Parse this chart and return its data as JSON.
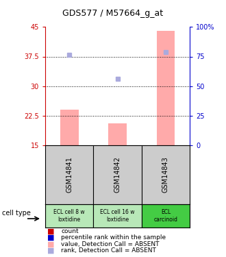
{
  "title": "GDS577 / M57664_g_at",
  "samples": [
    "GSM14841",
    "GSM14842",
    "GSM14843"
  ],
  "cell_types": [
    "ECL cell 8 w\nloxtidine",
    "ECL cell 16 w\nloxtidine",
    "ECL\ncarcinoid"
  ],
  "cell_type_colors": [
    "#b8e8b8",
    "#b8e8b8",
    "#44cc44"
  ],
  "bar_values": [
    24.0,
    20.5,
    44.0
  ],
  "bar_bottom": 15.0,
  "bar_color": "#ffaaaa",
  "rank_values": [
    76.5,
    56.0,
    79.0
  ],
  "rank_color": "#aaaadd",
  "ylim_left": [
    15,
    45
  ],
  "ylim_right": [
    0,
    100
  ],
  "yticks_left": [
    15,
    22.5,
    30,
    37.5,
    45
  ],
  "yticks_right": [
    0,
    25,
    50,
    75,
    100
  ],
  "ytick_labels_left": [
    "15",
    "22.5",
    "30",
    "37.5",
    "45"
  ],
  "ytick_labels_right": [
    "0",
    "25",
    "50",
    "75",
    "100%"
  ],
  "left_axis_color": "#cc0000",
  "right_axis_color": "#0000cc",
  "grid_yticks": [
    22.5,
    30,
    37.5
  ],
  "legend_items": [
    {
      "color": "#cc0000",
      "label": "count"
    },
    {
      "color": "#0000cc",
      "label": "percentile rank within the sample"
    },
    {
      "color": "#ffaaaa",
      "label": "value, Detection Call = ABSENT"
    },
    {
      "color": "#aaaadd",
      "label": "rank, Detection Call = ABSENT"
    }
  ],
  "cell_type_label": "cell type",
  "background_color": "#ffffff",
  "plot_bg_color": "#ffffff",
  "sample_area_color": "#cccccc"
}
